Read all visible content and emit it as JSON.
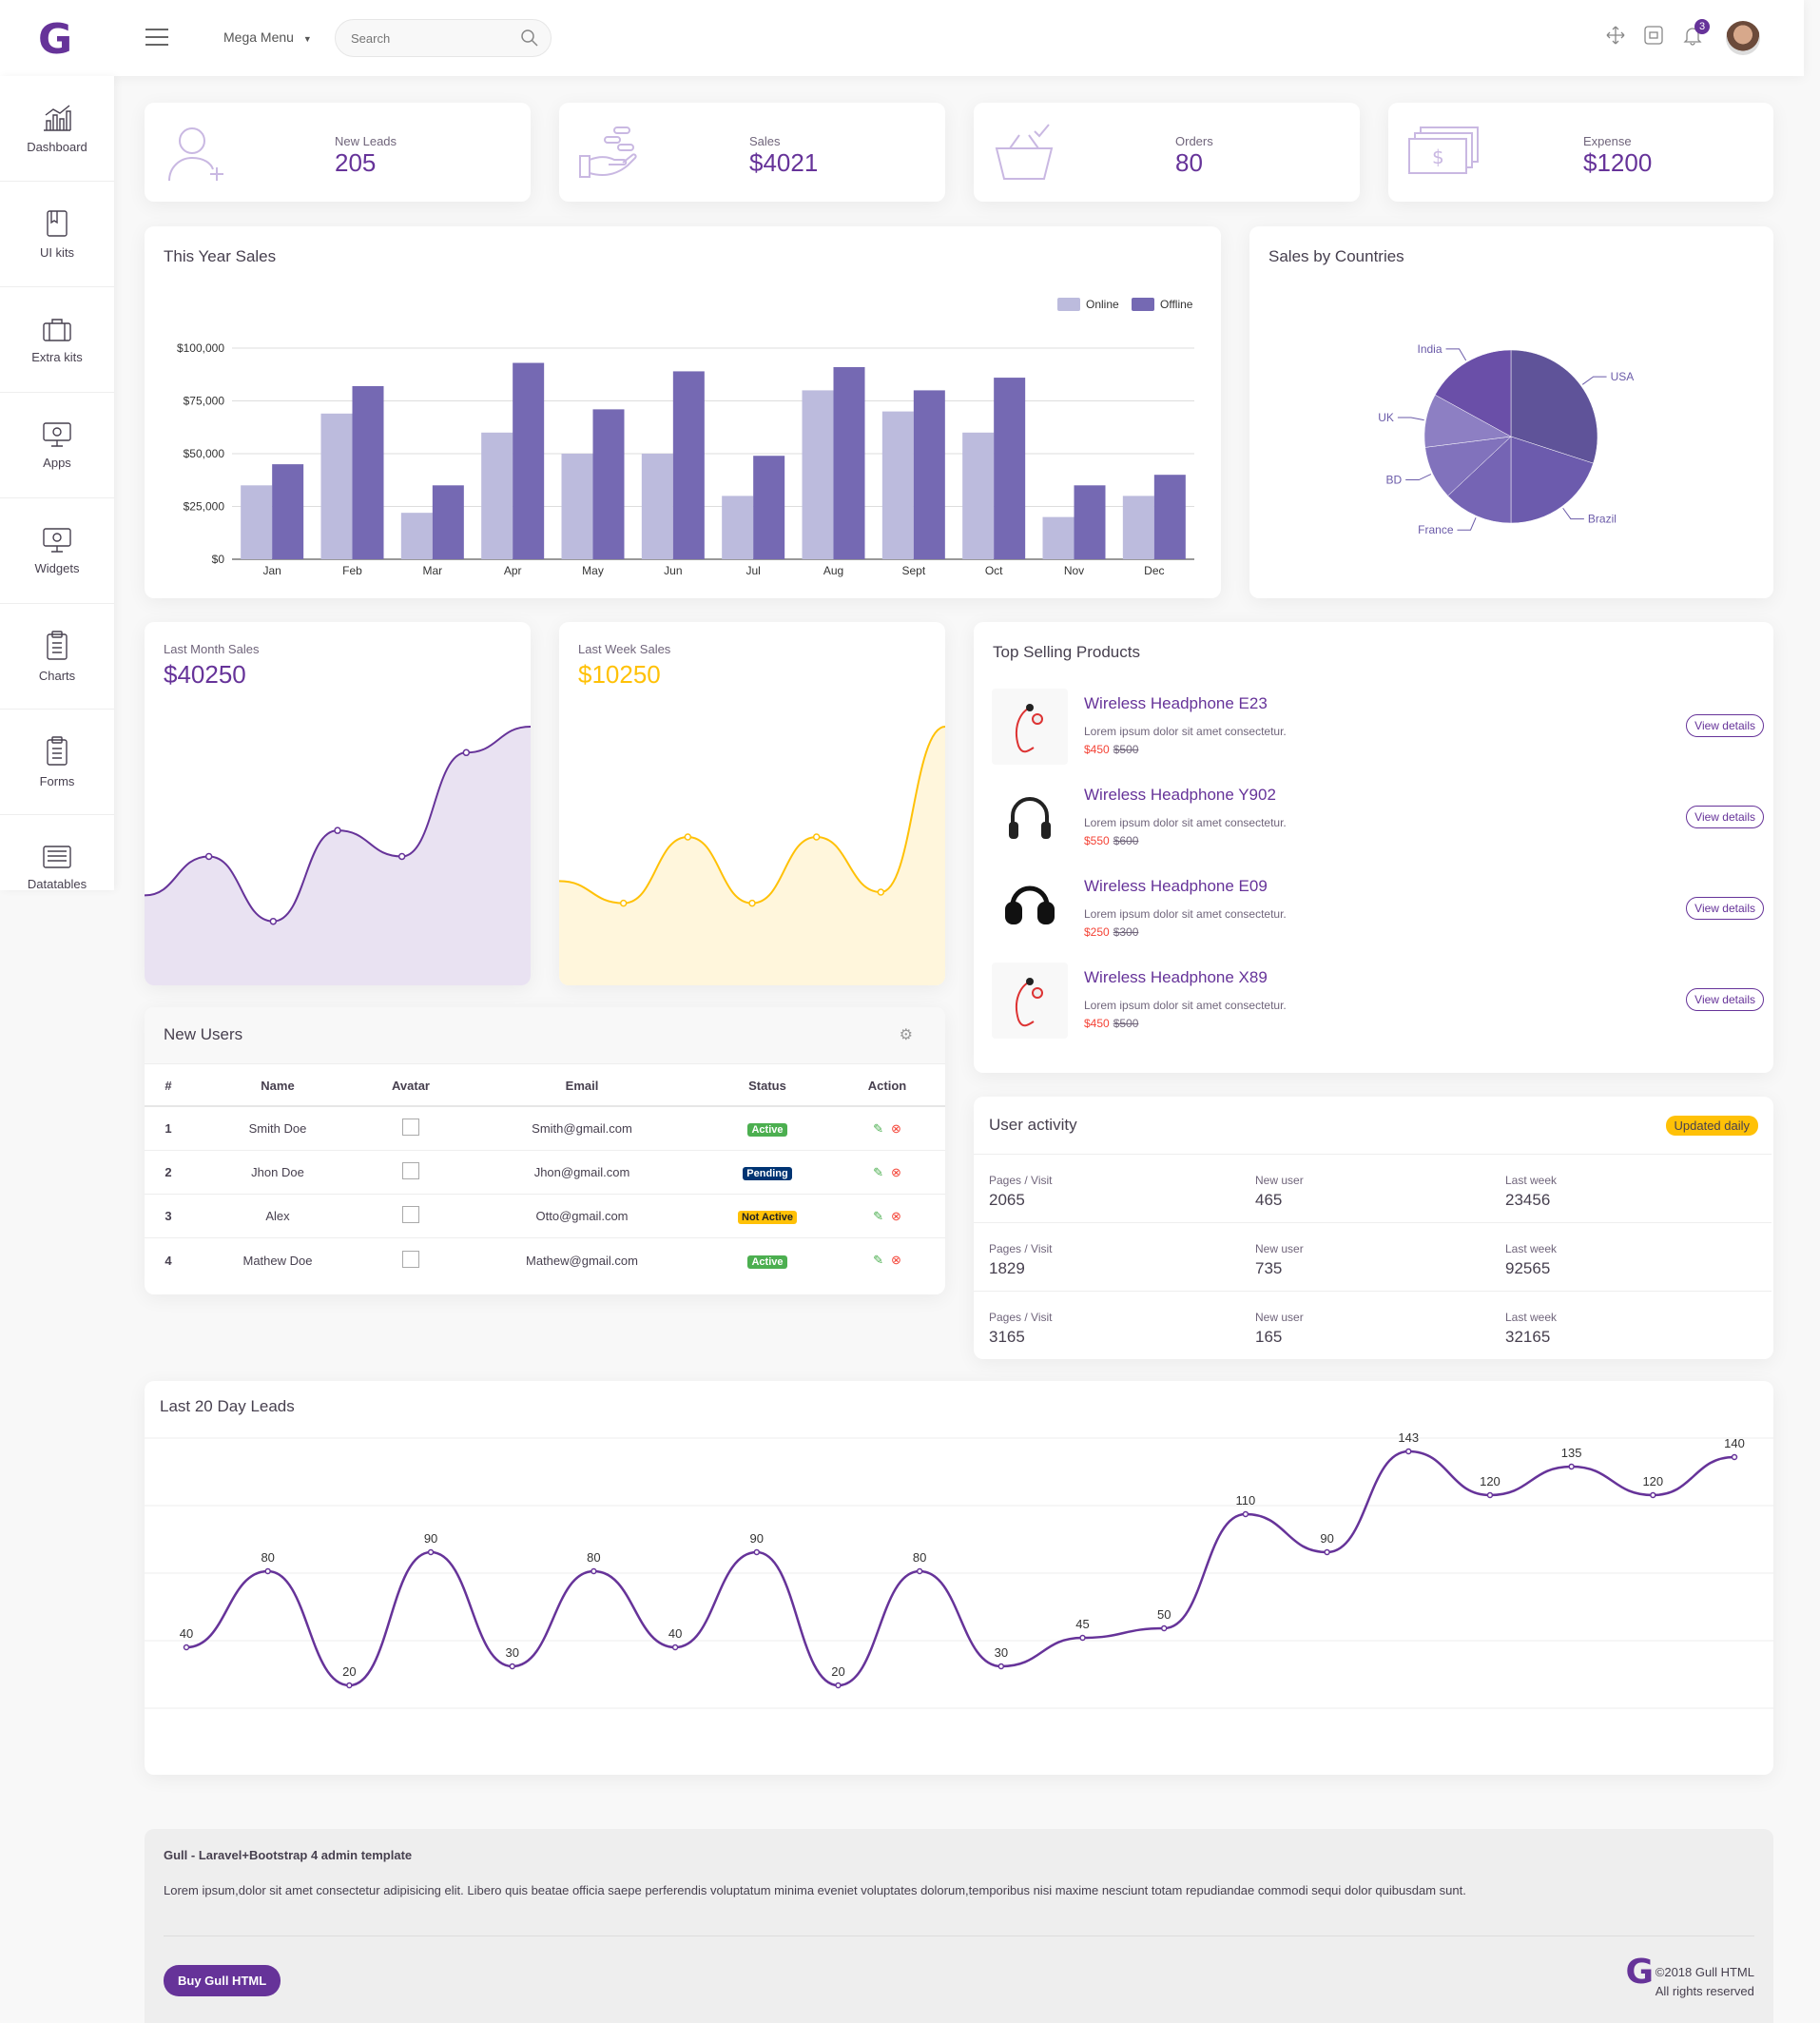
{
  "header": {
    "logo": "G",
    "mega_menu": "Mega Menu",
    "search_placeholder": "Search",
    "notification_count": "3"
  },
  "sidebar": {
    "items": [
      {
        "label": "Dashboard",
        "icon": "bar-chart-icon"
      },
      {
        "label": "UI kits",
        "icon": "book-icon"
      },
      {
        "label": "Extra kits",
        "icon": "suitcase-icon"
      },
      {
        "label": "Apps",
        "icon": "monitor-icon"
      },
      {
        "label": "Widgets",
        "icon": "monitor-icon"
      },
      {
        "label": "Charts",
        "icon": "clipboard-icon"
      },
      {
        "label": "Forms",
        "icon": "clipboard-icon"
      },
      {
        "label": "Datatables",
        "icon": "newspaper-icon"
      }
    ]
  },
  "stats": [
    {
      "label": "New Leads",
      "value": "205",
      "icon": "add-user-icon"
    },
    {
      "label": "Sales",
      "value": "$4021",
      "icon": "coins-hand-icon"
    },
    {
      "label": "Orders",
      "value": "80",
      "icon": "basket-icon"
    },
    {
      "label": "Expense",
      "value": "$1200",
      "icon": "money-icon"
    }
  ],
  "year_sales": {
    "title": "This Year Sales",
    "chart_data": {
      "type": "bar",
      "categories": [
        "Jan",
        "Feb",
        "Mar",
        "Apr",
        "May",
        "Jun",
        "Jul",
        "Aug",
        "Sept",
        "Oct",
        "Nov",
        "Dec"
      ],
      "series": [
        {
          "name": "Online",
          "values": [
            35000,
            69000,
            22000,
            60000,
            50000,
            50000,
            30000,
            80000,
            70000,
            60000,
            20000,
            30000
          ],
          "color": "#bcbbdd"
        },
        {
          "name": "Offline",
          "values": [
            45000,
            82000,
            35000,
            93000,
            71000,
            89000,
            49000,
            91000,
            80000,
            86000,
            35000,
            40000
          ],
          "color": "#7569b3"
        }
      ],
      "yticks": [
        "$0",
        "$25,000",
        "$50,000",
        "$75,000",
        "$100,000"
      ],
      "ylim": [
        0,
        100000
      ],
      "legend": "top-right"
    }
  },
  "countries": {
    "title": "Sales by Countries",
    "chart_data": {
      "type": "pie",
      "labels": [
        "USA",
        "Brazil",
        "France",
        "BD",
        "UK",
        "India"
      ],
      "values": [
        30,
        20,
        13,
        10,
        10,
        17
      ],
      "colors": [
        "#5f5399",
        "#6c5bad",
        "#7564b4",
        "#8172bc",
        "#8d7fc3",
        "#6a4fa8"
      ]
    }
  },
  "last_month": {
    "label": "Last Month Sales",
    "value": "$40250",
    "chart_data": {
      "type": "area",
      "values": [
        20,
        35,
        10,
        45,
        35,
        75,
        85
      ]
    }
  },
  "last_week": {
    "label": "Last Week Sales",
    "value": "$10250",
    "chart_data": {
      "type": "area",
      "values": [
        30,
        20,
        50,
        20,
        50,
        25,
        100
      ]
    }
  },
  "top_products": {
    "title": "Top Selling Products",
    "desc": "Lorem ipsum dolor sit amet consectetur.",
    "button": "View details",
    "items": [
      {
        "name": "Wireless Headphone E23",
        "price": "$450",
        "old": "$500"
      },
      {
        "name": "Wireless Headphone Y902",
        "price": "$550",
        "old": "$600"
      },
      {
        "name": "Wireless Headphone E09",
        "price": "$250",
        "old": "$300"
      },
      {
        "name": "Wireless Headphone X89",
        "price": "$450",
        "old": "$500"
      }
    ]
  },
  "new_users": {
    "title": "New Users",
    "columns": [
      "#",
      "Name",
      "Avatar",
      "Email",
      "Status",
      "Action"
    ],
    "rows": [
      {
        "n": "1",
        "name": "Smith Doe",
        "email": "Smith@gmail.com",
        "status": "Active",
        "status_color": "#4caf50"
      },
      {
        "n": "2",
        "name": "Jhon Doe",
        "email": "Jhon@gmail.com",
        "status": "Pending",
        "status_color": "#003473"
      },
      {
        "n": "3",
        "name": "Alex",
        "email": "Otto@gmail.com",
        "status": "Not Active",
        "status_color": "#ffc107"
      },
      {
        "n": "4",
        "name": "Mathew Doe",
        "email": "Mathew@gmail.com",
        "status": "Active",
        "status_color": "#4caf50"
      }
    ]
  },
  "activity": {
    "title": "User activity",
    "badge": "Updated daily",
    "rows": [
      {
        "pages_label": "Pages / Visit",
        "pages": "2065",
        "new_label": "New user",
        "new": "465",
        "week_label": "Last week",
        "week": "23456"
      },
      {
        "pages_label": "Pages / Visit",
        "pages": "1829",
        "new_label": "New user",
        "new": "735",
        "week_label": "Last week",
        "week": "92565"
      },
      {
        "pages_label": "Pages / Visit",
        "pages": "3165",
        "new_label": "New user",
        "new": "165",
        "week_label": "Last week",
        "week": "32165"
      }
    ]
  },
  "leads": {
    "title": "Last 20 Day Leads",
    "chart_data": {
      "type": "line",
      "values": [
        40,
        80,
        20,
        90,
        30,
        80,
        40,
        90,
        20,
        80,
        30,
        45,
        50,
        110,
        90,
        143,
        120,
        135,
        120,
        140
      ],
      "ylim": [
        0,
        150
      ]
    }
  },
  "footer": {
    "title": "Gull - Laravel+Bootstrap 4 admin template",
    "text": "Lorem ipsum,dolor sit amet consectetur adipisicing elit. Libero quis beatae officia saepe perferendis voluptatum minima eveniet voluptates dolorum,temporibus nisi maxime nesciunt totam repudiandae commodi sequi dolor quibusdam sunt.",
    "button": "Buy Gull HTML",
    "copyright": "©2018 Gull HTML",
    "rights": "All rights reserved"
  },
  "colors": {
    "brand": "#663399",
    "yellow": "#ffc107",
    "danger": "#f44336"
  }
}
